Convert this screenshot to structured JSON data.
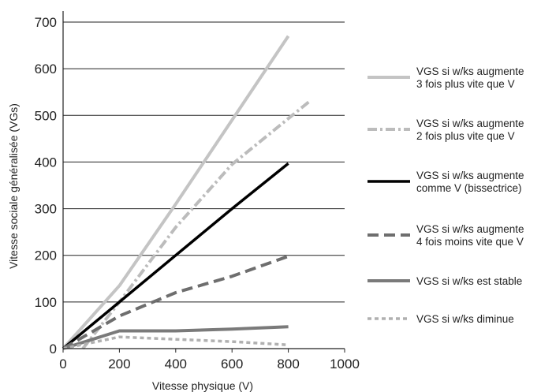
{
  "chart_data": {
    "type": "line",
    "title": "",
    "xlabel": "Vitesse physique (V)",
    "ylabel": "Vitesse sociale généralisée (VGs)",
    "xlim": [
      0,
      1000
    ],
    "ylim": [
      0,
      700
    ],
    "xticks": [
      "0",
      "200",
      "400",
      "600",
      "800",
      "1000"
    ],
    "yticks": [
      "0",
      "100",
      "200",
      "300",
      "400",
      "500",
      "600",
      "700"
    ],
    "grid": "horizontal",
    "legend_position": "right",
    "series": [
      {
        "name": [
          "VGS si w/ks augmente",
          "3 fois plus vite que V"
        ],
        "color": "#c4c4c4",
        "style": "solid",
        "points": [
          [
            0,
            0
          ],
          [
            200,
            135
          ],
          [
            400,
            310
          ],
          [
            600,
            490
          ],
          [
            800,
            670
          ]
        ]
      },
      {
        "name": [
          "VGS si w/ks augmente",
          "2 fois plus vite que V"
        ],
        "color": "#bcbcbc",
        "style": "dashdot",
        "points": [
          [
            70,
            0
          ],
          [
            200,
            100
          ],
          [
            400,
            260
          ],
          [
            600,
            395
          ],
          [
            875,
            530
          ]
        ]
      },
      {
        "name": [
          "VGS si w/ks augmente",
          "comme V (bissectrice)"
        ],
        "color": "#000000",
        "style": "solid",
        "points": [
          [
            0,
            0
          ],
          [
            200,
            100
          ],
          [
            400,
            200
          ],
          [
            600,
            300
          ],
          [
            800,
            397
          ]
        ]
      },
      {
        "name": [
          "VGS si w/ks augmente",
          "4 fois moins vite que V"
        ],
        "color": "#6e6e6e",
        "style": "dashed",
        "points": [
          [
            0,
            0
          ],
          [
            200,
            70
          ],
          [
            400,
            120
          ],
          [
            600,
            155
          ],
          [
            800,
            198
          ]
        ]
      },
      {
        "name": [
          "VGS si w/ks est stable"
        ],
        "color": "#7a7a7a",
        "style": "solid",
        "points": [
          [
            0,
            0
          ],
          [
            200,
            38
          ],
          [
            400,
            38
          ],
          [
            600,
            42
          ],
          [
            800,
            47
          ]
        ]
      },
      {
        "name": [
          "VGS si w/ks diminue"
        ],
        "color": "#b0b0b0",
        "style": "dotted",
        "points": [
          [
            0,
            0
          ],
          [
            200,
            25
          ],
          [
            400,
            20
          ],
          [
            600,
            15
          ],
          [
            800,
            8
          ]
        ]
      }
    ]
  }
}
